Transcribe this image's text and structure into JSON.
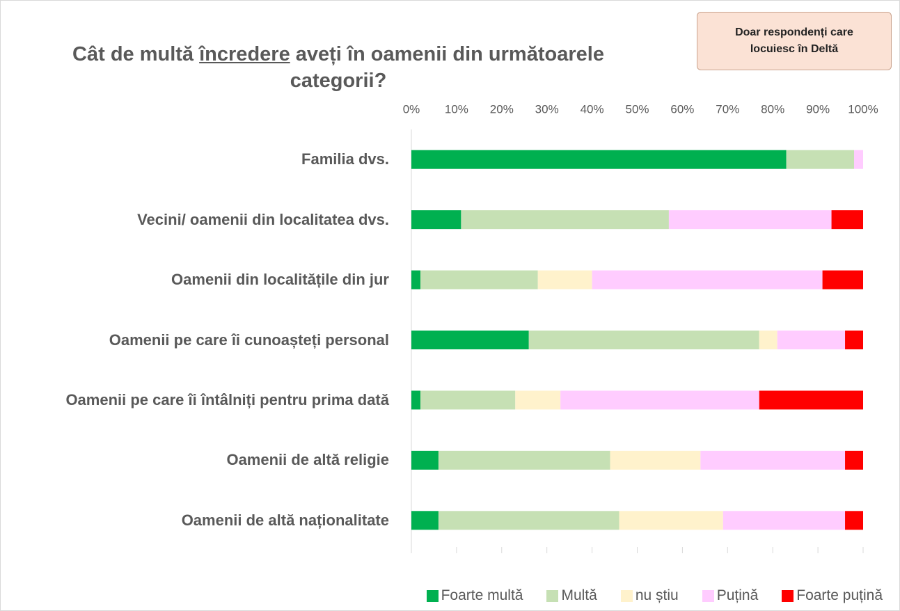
{
  "chart_data": {
    "type": "stacked-bar-horizontal",
    "title": [
      "Cât de multă",
      "încredere",
      "aveți în oamenii din următoarele categorii?"
    ],
    "annotation": "Doar respondenți care locuiesc în Deltă",
    "categories": [
      "Familia dvs.",
      "Vecini/ oamenii din localitatea dvs.",
      "Oamenii din localitățile din jur",
      "Oamenii pe care îi cunoașteți personal",
      "Oamenii pe care îi întâlniți pentru prima dată",
      "Oamenii de altă religie",
      "Oamenii de altă naționalitate"
    ],
    "series": [
      {
        "name": "Foarte multă",
        "color": "#00b050",
        "values": [
          83,
          11,
          2,
          26,
          2,
          6,
          6
        ]
      },
      {
        "name": "Multă",
        "color": "#c6e0b4",
        "values": [
          15,
          46,
          26,
          51,
          21,
          38,
          40
        ]
      },
      {
        "name": "nu știu",
        "color": "#fff2cc",
        "values": [
          0,
          0,
          12,
          4,
          10,
          20,
          23
        ]
      },
      {
        "name": "Puțină",
        "color": "#ffccff",
        "values": [
          2,
          36,
          51,
          15,
          44,
          32,
          27
        ]
      },
      {
        "name": "Foarte puțină",
        "color": "#ff0000",
        "values": [
          0,
          7,
          9,
          4,
          23,
          4,
          4
        ]
      }
    ],
    "xlim": [
      0,
      100
    ],
    "xticks": [
      {
        "value": 0,
        "label": "0%"
      },
      {
        "value": 10,
        "label": "10%"
      },
      {
        "value": 20,
        "label": "20%"
      },
      {
        "value": 30,
        "label": "30%"
      },
      {
        "value": 40,
        "label": "40%"
      },
      {
        "value": 50,
        "label": "50%"
      },
      {
        "value": 60,
        "label": "60%"
      },
      {
        "value": 70,
        "label": "70%"
      },
      {
        "value": 80,
        "label": "80%"
      },
      {
        "value": 90,
        "label": "90%"
      },
      {
        "value": 100,
        "label": "100%"
      }
    ],
    "legend": "bottom"
  }
}
